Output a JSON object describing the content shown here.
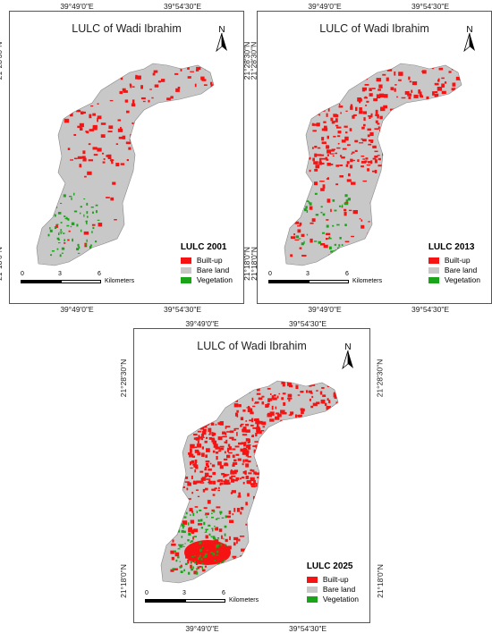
{
  "colors": {
    "builtup": "#f51313",
    "bareland": "#c8c8c8",
    "vegetation": "#1aa41a"
  },
  "axis_labels": {
    "lon_left": "39°49'0\"E",
    "lon_right": "39°54'30\"E",
    "lat_top": "21°28'30\"N",
    "lat_bottom": "21°18'0\"N"
  },
  "north_label": "N",
  "legend_items": {
    "builtup": "Built-up",
    "bareland": "Bare land",
    "vegetation": "Vegetation"
  },
  "scale": {
    "t0": "0",
    "t1": "3",
    "t2": "6",
    "unit": "Kilometers"
  },
  "maps": [
    {
      "title": "LULC of Wadi Ibrahim",
      "legend_title": "LULC 2001"
    },
    {
      "title": "LULC of Wadi Ibrahim",
      "legend_title": "LULC 2013"
    },
    {
      "title": "LULC of Wadi Ibrahim",
      "legend_title": "LULC 2025"
    }
  ]
}
